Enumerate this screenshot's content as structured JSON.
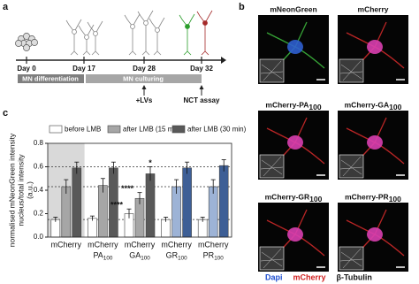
{
  "panel_labels": [
    "a",
    "b",
    "c"
  ],
  "timeline": {
    "days": [
      "Day 0",
      "Day 17",
      "Day 28",
      "Day 32"
    ],
    "phases": [
      "MN differentiation",
      "MN culturing"
    ],
    "events": [
      "+LVs",
      "NCT assay"
    ]
  },
  "micrographs": {
    "images": [
      {
        "name": "mNeonGreen"
      },
      {
        "name": "mCherry"
      },
      {
        "name": "mCherry-PA",
        "sub": "100"
      },
      {
        "name": "mCherry-GA",
        "sub": "100"
      },
      {
        "name": "mCherry-GR",
        "sub": "100"
      },
      {
        "name": "mCherry-PR",
        "sub": "100"
      }
    ],
    "legend": [
      {
        "text": "Dapi",
        "color": "#1f4fd0"
      },
      {
        "text": "mCherry",
        "color": "#d01f1f"
      },
      {
        "text": "β-Tubulin",
        "color": "#111111"
      }
    ]
  },
  "chart_data": {
    "type": "bar",
    "y_label": [
      "normalised mNeonGreen intensity",
      "nucleus/total intensity",
      "(a.u.)"
    ],
    "categories": [
      "mCherry",
      "mCherry",
      "mCherry",
      "mCherry",
      "mCherry"
    ],
    "category_sublabels": [
      null,
      {
        "text": "PA",
        "sub": "100"
      },
      {
        "text": "GA",
        "sub": "100"
      },
      {
        "text": "GR",
        "sub": "100"
      },
      {
        "text": "PR",
        "sub": "100"
      }
    ],
    "ylim": [
      0,
      0.8
    ],
    "yticks": [
      {
        "value": 0,
        "label": "0.0"
      },
      {
        "value": 0.2,
        "label": "0.2"
      },
      {
        "value": 0.4,
        "label": "0.4"
      },
      {
        "value": 0.6,
        "label": "0.6"
      },
      {
        "value": 0.8,
        "label": "0.8"
      }
    ],
    "reference_lines": [
      0.15,
      0.43,
      0.6
    ],
    "shaded_category": 0,
    "series": [
      {
        "name": "before LMB",
        "color": "#ffffff",
        "colors": [
          "#ffffff",
          "#ffffff",
          "#ffffff",
          "#ffffff",
          "#ffffff"
        ],
        "values": [
          0.15,
          0.16,
          0.2,
          0.15,
          0.15
        ],
        "errors": [
          0.02,
          0.02,
          0.04,
          0.02,
          0.02
        ],
        "significance": [
          null,
          null,
          "****",
          null,
          null
        ]
      },
      {
        "name": "after LMB (15 min)",
        "color": "#a6a6a6",
        "colors": [
          "#a6a6a6",
          "#a6a6a6",
          "#a6a6a6",
          "#9db3d6",
          "#9db3d6"
        ],
        "values": [
          0.43,
          0.44,
          0.33,
          0.43,
          0.43
        ],
        "errors": [
          0.06,
          0.06,
          0.05,
          0.06,
          0.06
        ],
        "significance": [
          null,
          null,
          "****",
          null,
          null
        ]
      },
      {
        "name": "after LMB (30 min)",
        "color": "#595959",
        "colors": [
          "#595959",
          "#595959",
          "#595959",
          "#3e5f96",
          "#3e5f96"
        ],
        "values": [
          0.59,
          0.59,
          0.54,
          0.59,
          0.61
        ],
        "errors": [
          0.05,
          0.05,
          0.06,
          0.05,
          0.05
        ],
        "significance": [
          null,
          null,
          "*",
          null,
          null
        ]
      }
    ]
  }
}
